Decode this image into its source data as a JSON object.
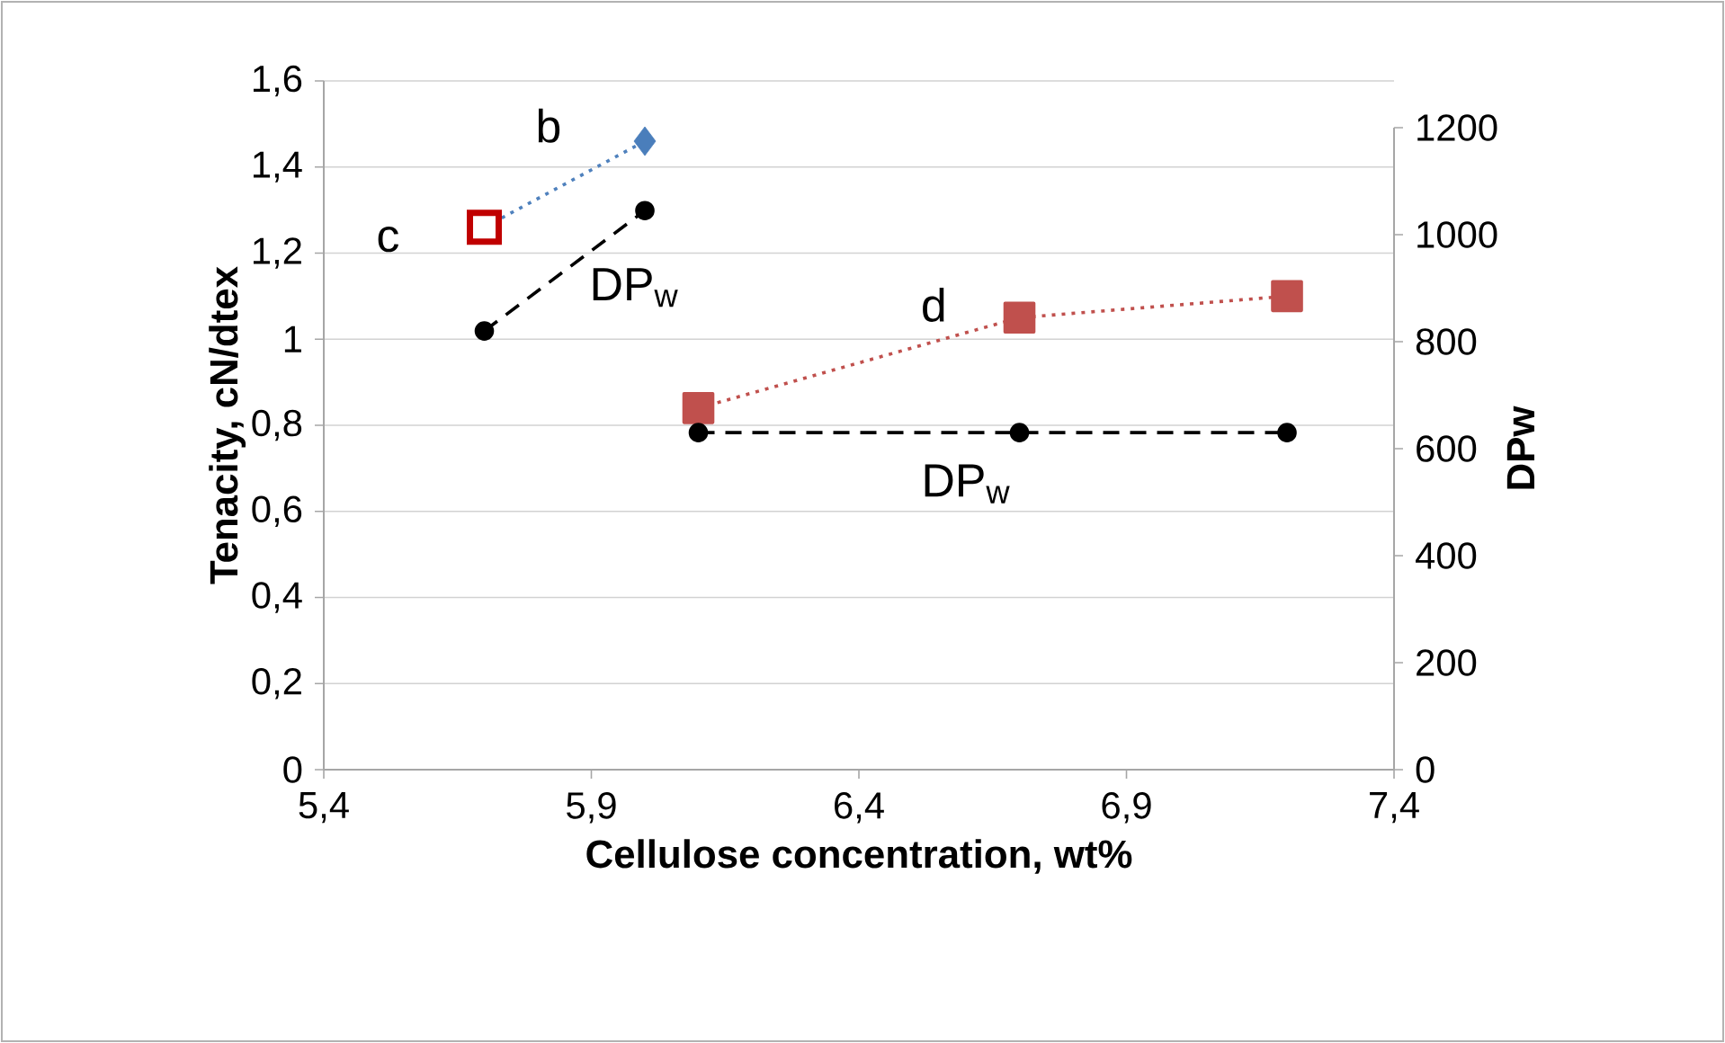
{
  "chart_data": {
    "type": "line",
    "xlabel": "Cellulose concentration, wt%",
    "ylabel": "Tenacity, cN/dtex",
    "y2label": "DPw",
    "xlim": [
      5.4,
      7.4
    ],
    "xticks": [
      {
        "value": 5.4,
        "label": "5,4"
      },
      {
        "value": 5.9,
        "label": "5,9"
      },
      {
        "value": 6.4,
        "label": "6,4"
      },
      {
        "value": 6.9,
        "label": "6,9"
      },
      {
        "value": 7.4,
        "label": "7,4"
      }
    ],
    "ylim": [
      0,
      1.6
    ],
    "yticks": [
      0,
      {
        "value": 0.2,
        "label": "0,2"
      },
      {
        "value": 0.4,
        "label": "0,4"
      },
      {
        "value": 0.6,
        "label": "0,6"
      },
      {
        "value": 0.8,
        "label": "0,8"
      },
      1,
      {
        "value": 1.2,
        "label": "1,2"
      },
      {
        "value": 1.4,
        "label": "1,4"
      },
      {
        "value": 1.6,
        "label": "1,6"
      }
    ],
    "y2lim": [
      0,
      1200
    ],
    "y2ticks": [
      0,
      200,
      400,
      600,
      800,
      1000,
      1200
    ],
    "grid": "y",
    "series": [
      {
        "color": "#4f81bd",
        "x": [
          5.7,
          6.0
        ],
        "values": [
          1.26,
          1.46
        ],
        "line_style": "dotted",
        "marker": "none"
      },
      {
        "type": "scatter",
        "color": "#4a7ebb",
        "x": [
          6.0
        ],
        "values": [
          1.46
        ],
        "marker": "diamond"
      },
      {
        "type": "scatter",
        "color": "#c00000",
        "x": [
          5.7
        ],
        "values": [
          1.26
        ],
        "marker": "square"
      },
      {
        "color": "#c0504d",
        "x": [
          6.1,
          6.7,
          7.2
        ],
        "values": [
          0.84,
          1.05,
          1.1
        ],
        "line_style": "dotted",
        "marker": "square"
      },
      {
        "color": "#000000",
        "axis": "y2",
        "x": [
          5.7,
          6.0
        ],
        "values": [
          820,
          1045
        ],
        "line_style": "dashed",
        "marker": "circle"
      },
      {
        "color": "#000000",
        "axis": "y2",
        "x": [
          6.1,
          6.7,
          7.2
        ],
        "values": [
          630,
          630,
          630
        ],
        "line_style": "dashed",
        "marker": "circle"
      }
    ],
    "annotations": [
      "b",
      "c",
      "DP$_{w}$",
      "d",
      "DP$_{w}$"
    ]
  }
}
